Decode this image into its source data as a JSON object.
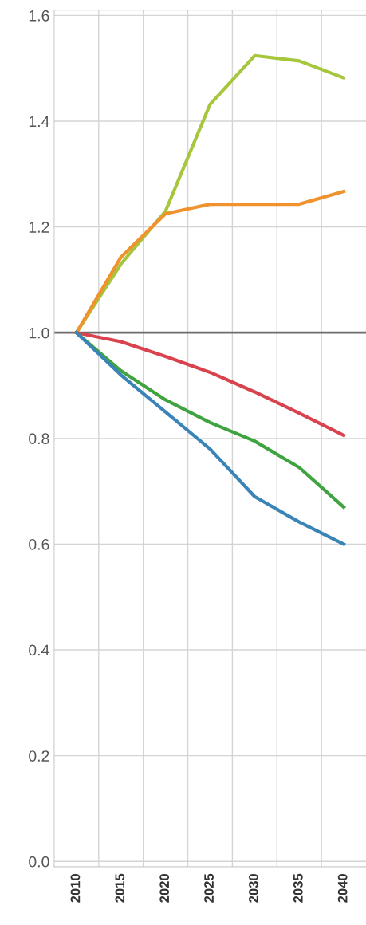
{
  "chart_data": {
    "type": "line",
    "categories": [
      "2010",
      "2015",
      "2020",
      "2025",
      "2030",
      "2035",
      "2040"
    ],
    "series": [
      {
        "color": "#a6c63c",
        "values": [
          1.0,
          1.13,
          1.23,
          1.432,
          1.524,
          1.514,
          1.482
        ]
      },
      {
        "color": "#f0922e",
        "values": [
          1.0,
          1.143,
          1.225,
          1.243,
          1.243,
          1.243,
          1.267
        ]
      },
      {
        "color": "#d9434e",
        "values": [
          1.0,
          0.983,
          0.955,
          0.925,
          0.888,
          0.848,
          0.806
        ]
      },
      {
        "color": "#3fa33f",
        "values": [
          1.0,
          0.928,
          0.873,
          0.83,
          0.795,
          0.745,
          0.67
        ]
      },
      {
        "color": "#3a84b8",
        "values": [
          1.0,
          0.92,
          0.85,
          0.78,
          0.69,
          0.642,
          0.6
        ]
      }
    ],
    "ylim": [
      -0.01,
      1.61
    ],
    "yticks": [
      {
        "value": 0,
        "label": "0.0"
      },
      {
        "value": 0.2,
        "label": "0.2"
      },
      {
        "value": 0.4,
        "label": "0.4"
      },
      {
        "value": 0.6,
        "label": "0.6"
      },
      {
        "value": 0.8,
        "label": "0.8"
      },
      {
        "value": 1.0,
        "label": "1.0"
      },
      {
        "value": 1.2,
        "label": "1.2"
      },
      {
        "value": 1.4,
        "label": "1.4"
      },
      {
        "value": 1.6,
        "label": "1.6"
      }
    ],
    "ref_lines": [
      {
        "axis": "y",
        "value": 1.0,
        "color": "#6e6e6e"
      }
    ],
    "grid": true,
    "marker": "none",
    "line_style": "solid"
  }
}
